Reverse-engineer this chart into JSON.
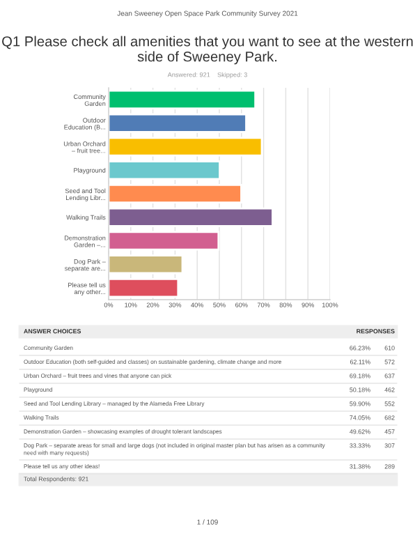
{
  "chart_data": {
    "type": "bar",
    "orientation": "horizontal",
    "title": "Q1 Please check all amenities that you want to see at the western side of Sweeney Park.",
    "subtitle": "Answered: 921    Skipped: 3",
    "categories": [
      "Community\nGarden",
      "Outdoor\nEducation (B...",
      "Urban Orchard\n– fruit tree...",
      "Playground",
      "Seed and Tool\nLending Libr...",
      "Walking Trails",
      "Demonstration\nGarden –...",
      "Dog Park –\nseparate are...",
      "Please tell us\nany other..."
    ],
    "values": [
      66.23,
      62.11,
      69.18,
      50.18,
      59.9,
      74.05,
      49.62,
      33.33,
      31.38
    ],
    "colors": [
      "#00bf6f",
      "#507cb6",
      "#f9be00",
      "#6bc8cd",
      "#ff8b4f",
      "#7d5e90",
      "#d25f90",
      "#c9b77a",
      "#de4e5d"
    ],
    "xlim": [
      0,
      100
    ],
    "xticks": [
      {
        "value": 0,
        "label": "0%"
      },
      {
        "value": 10,
        "label": "10%"
      },
      {
        "value": 20,
        "label": "20%"
      },
      {
        "value": 30,
        "label": "30%"
      },
      {
        "value": 40,
        "label": "40%"
      },
      {
        "value": 50,
        "label": "50%"
      },
      {
        "value": 60,
        "label": "60%"
      },
      {
        "value": 70,
        "label": "70%"
      },
      {
        "value": 80,
        "label": "80%"
      },
      {
        "value": 90,
        "label": "90%"
      },
      {
        "value": 100,
        "label": "100%"
      }
    ],
    "grid": "x",
    "annotations": [
      "Jean Sweeney Open Space Park Community Survey 2021",
      "ANSWER CHOICES",
      "RESPONSES",
      "Community Garden",
      "66.23%",
      "610",
      "Outdoor Education (both self-guided and classes) on sustainable gardening, climate change and more",
      "62.11%",
      "572",
      "Urban Orchard – fruit trees and vines that anyone can pick",
      "69.18%",
      "637",
      "Playground",
      "50.18%",
      "462",
      "Seed and Tool Lending Library – managed by the Alameda Free Library",
      "59.90%",
      "552",
      "Walking Trails",
      "74.05%",
      "682",
      "Demonstration Garden – showcasing examples of drought tolerant landscapes",
      "49.62%",
      "457",
      "Dog Park – separate areas for small and large dogs (not included in original master plan but has arisen as a community\nneed with many requests)",
      "33.33%",
      "307",
      "Please tell us any other ideas!",
      "31.38%",
      "289",
      "Total Respondents: 921",
      "1 / 109"
    ]
  }
}
